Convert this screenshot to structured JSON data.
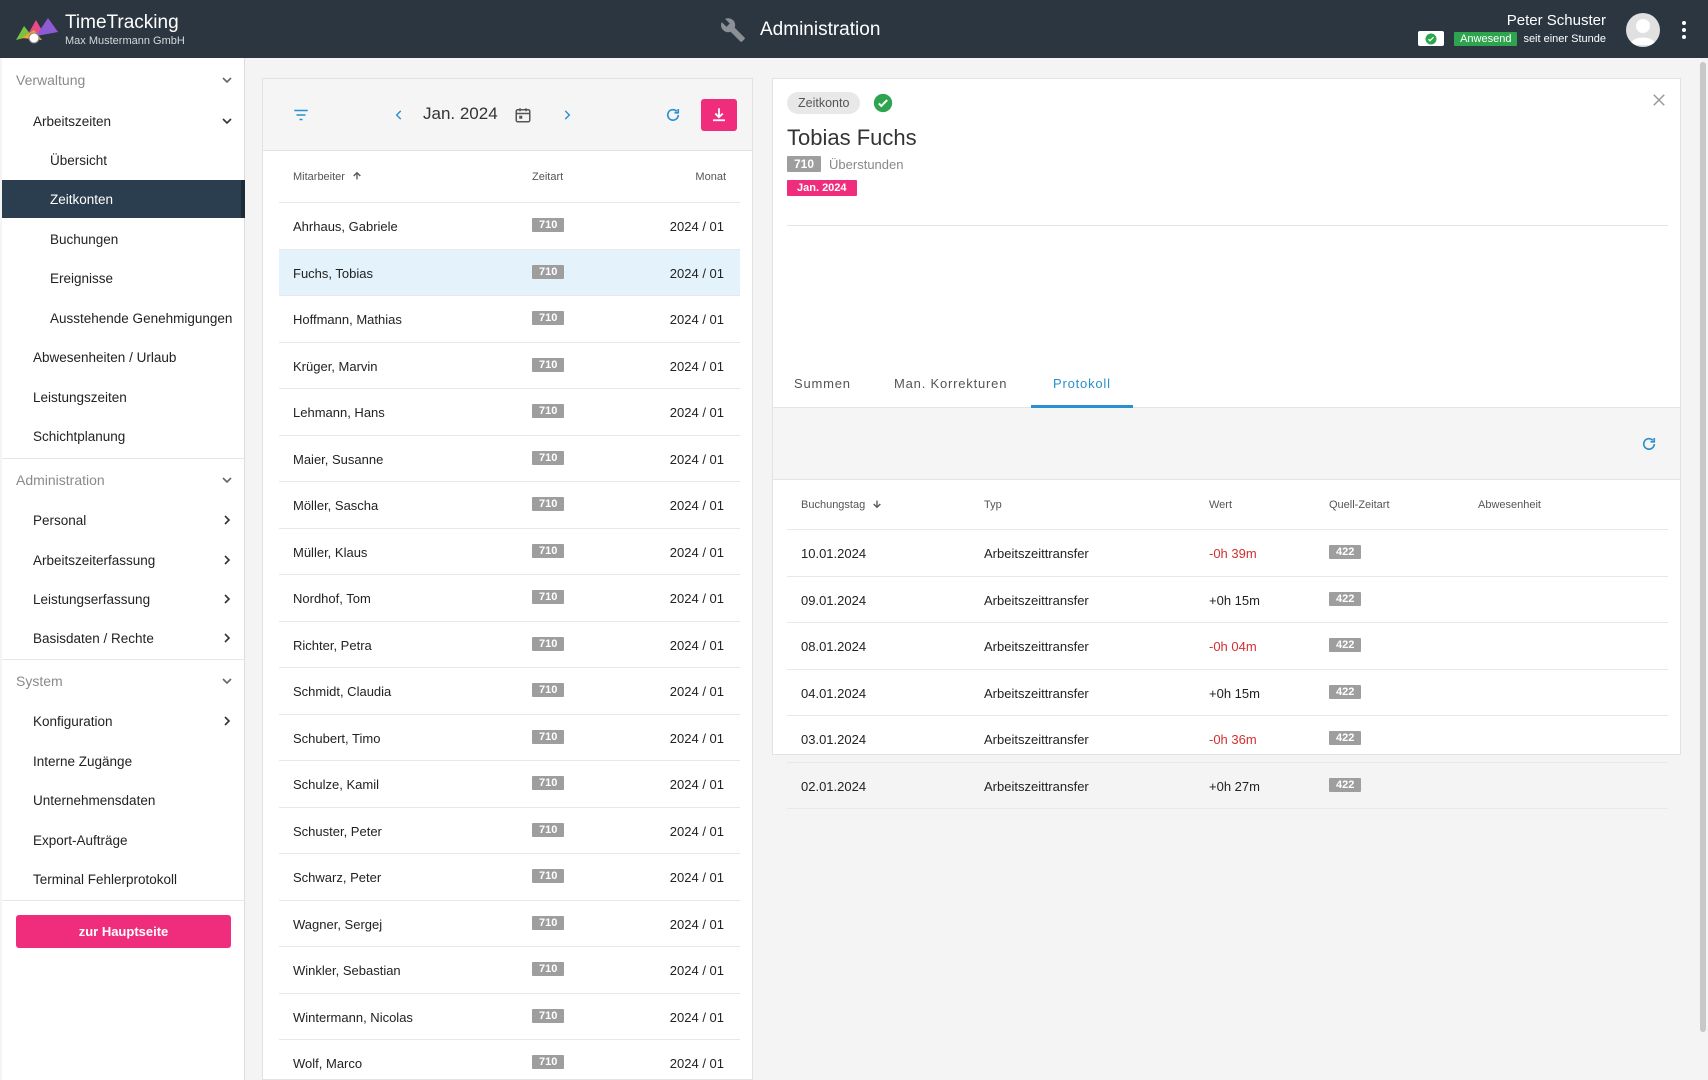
{
  "app": {
    "title": "TimeTracking",
    "company": "Max Mustermann GmbH",
    "page_title": "Administration"
  },
  "user": {
    "name": "Peter Schuster",
    "status": "Anwesend",
    "since": "seit einer Stunde"
  },
  "colors": {
    "topbar": "#2b3640",
    "accent": "#f02d7d",
    "active_nav": "#2b3e50",
    "link_blue": "#2a8fcf",
    "present_green": "#2ea44f",
    "negative_red": "#d32f2f",
    "badge_grey": "#9e9e9e"
  },
  "sidebar": {
    "sections": [
      {
        "label": "Verwaltung"
      },
      {
        "label": "Administration"
      },
      {
        "label": "System"
      }
    ],
    "items": [
      {
        "label": "Arbeitszeiten"
      },
      {
        "label": "Übersicht"
      },
      {
        "label": "Zeitkonten"
      },
      {
        "label": "Buchungen"
      },
      {
        "label": "Ereignisse"
      },
      {
        "label": "Ausstehende Genehmigungen"
      },
      {
        "label": "Abwesenheiten / Urlaub"
      },
      {
        "label": "Leistungszeiten"
      },
      {
        "label": "Schichtplanung"
      },
      {
        "label": "Personal"
      },
      {
        "label": "Arbeitszeiterfassung"
      },
      {
        "label": "Leistungserfassung"
      },
      {
        "label": "Basisdaten / Rechte"
      },
      {
        "label": "Konfiguration"
      },
      {
        "label": "Interne Zugänge"
      },
      {
        "label": "Unternehmensdaten"
      },
      {
        "label": "Export-Aufträge"
      },
      {
        "label": "Terminal Fehlerprotokoll"
      }
    ],
    "home_button": "zur Hauptseite"
  },
  "list": {
    "month": "Jan. 2024",
    "columns": {
      "employee": "Mitarbeiter",
      "type": "Zeitart",
      "month": "Monat"
    },
    "rows": [
      {
        "name": "Ahrhaus, Gabriele",
        "code": "710",
        "month": "2024 / 01"
      },
      {
        "name": "Fuchs, Tobias",
        "code": "710",
        "month": "2024 / 01"
      },
      {
        "name": "Hoffmann, Mathias",
        "code": "710",
        "month": "2024 / 01"
      },
      {
        "name": "Krüger, Marvin",
        "code": "710",
        "month": "2024 / 01"
      },
      {
        "name": "Lehmann, Hans",
        "code": "710",
        "month": "2024 / 01"
      },
      {
        "name": "Maier, Susanne",
        "code": "710",
        "month": "2024 / 01"
      },
      {
        "name": "Möller, Sascha",
        "code": "710",
        "month": "2024 / 01"
      },
      {
        "name": "Müller, Klaus",
        "code": "710",
        "month": "2024 / 01"
      },
      {
        "name": "Nordhof, Tom",
        "code": "710",
        "month": "2024 / 01"
      },
      {
        "name": "Richter, Petra",
        "code": "710",
        "month": "2024 / 01"
      },
      {
        "name": "Schmidt, Claudia",
        "code": "710",
        "month": "2024 / 01"
      },
      {
        "name": "Schubert, Timo",
        "code": "710",
        "month": "2024 / 01"
      },
      {
        "name": "Schulze, Kamil",
        "code": "710",
        "month": "2024 / 01"
      },
      {
        "name": "Schuster, Peter",
        "code": "710",
        "month": "2024 / 01"
      },
      {
        "name": "Schwarz, Peter",
        "code": "710",
        "month": "2024 / 01"
      },
      {
        "name": "Wagner, Sergej",
        "code": "710",
        "month": "2024 / 01"
      },
      {
        "name": "Winkler, Sebastian",
        "code": "710",
        "month": "2024 / 01"
      },
      {
        "name": "Wintermann, Nicolas",
        "code": "710",
        "month": "2024 / 01"
      },
      {
        "name": "Wolf, Marco",
        "code": "710",
        "month": "2024 / 01"
      }
    ]
  },
  "detail": {
    "chip": "Zeitkonto",
    "name": "Tobias Fuchs",
    "code": "710",
    "code_label": "Überstunden",
    "month_badge": "Jan. 2024",
    "tabs": [
      {
        "label": "Summen"
      },
      {
        "label": "Man. Korrekturen"
      },
      {
        "label": "Protokoll"
      }
    ],
    "columns": {
      "date": "Buchungstag",
      "type": "Typ",
      "value": "Wert",
      "source": "Quell-Zeitart",
      "absence": "Abwesenheit"
    },
    "rows": [
      {
        "date": "10.01.2024",
        "type": "Arbeitszeittransfer",
        "value": "-0h 39m",
        "source": "422"
      },
      {
        "date": "09.01.2024",
        "type": "Arbeitszeittransfer",
        "value": "+0h 15m",
        "source": "422"
      },
      {
        "date": "08.01.2024",
        "type": "Arbeitszeittransfer",
        "value": "-0h 04m",
        "source": "422"
      },
      {
        "date": "04.01.2024",
        "type": "Arbeitszeittransfer",
        "value": "+0h 15m",
        "source": "422"
      },
      {
        "date": "03.01.2024",
        "type": "Arbeitszeittransfer",
        "value": "-0h 36m",
        "source": "422"
      },
      {
        "date": "02.01.2024",
        "type": "Arbeitszeittransfer",
        "value": "+0h 27m",
        "source": "422"
      }
    ]
  }
}
